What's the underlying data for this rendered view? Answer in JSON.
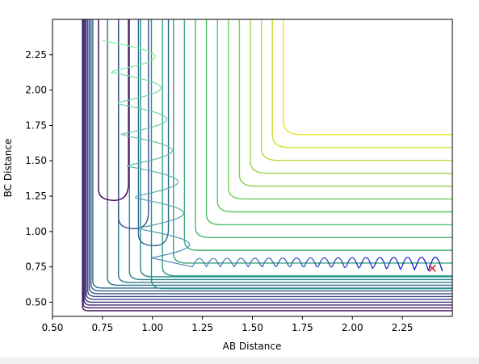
{
  "chart_data": {
    "type": "contour",
    "xlabel": "AB Distance",
    "ylabel": "BC Distance",
    "xlim": [
      0.5,
      2.5
    ],
    "ylim": [
      0.4,
      2.5
    ],
    "x_ticks": [
      "0.50",
      "0.75",
      "1.00",
      "1.25",
      "1.50",
      "1.75",
      "2.00",
      "2.25"
    ],
    "y_ticks": [
      "0.50",
      "0.75",
      "1.00",
      "1.25",
      "1.50",
      "1.75",
      "2.00",
      "2.25"
    ],
    "grid": false,
    "colormap": [
      "#440154",
      "#3b528b",
      "#21918c",
      "#5ec962",
      "#fde725"
    ],
    "marker": {
      "symbol": "x",
      "x": 2.4,
      "y": 0.74,
      "color": "#e41a1c"
    },
    "trajectory_color_start": "#7df5a0",
    "trajectory_color_end": "#0000cc"
  },
  "footer_strip_color": "#f0f0f0"
}
